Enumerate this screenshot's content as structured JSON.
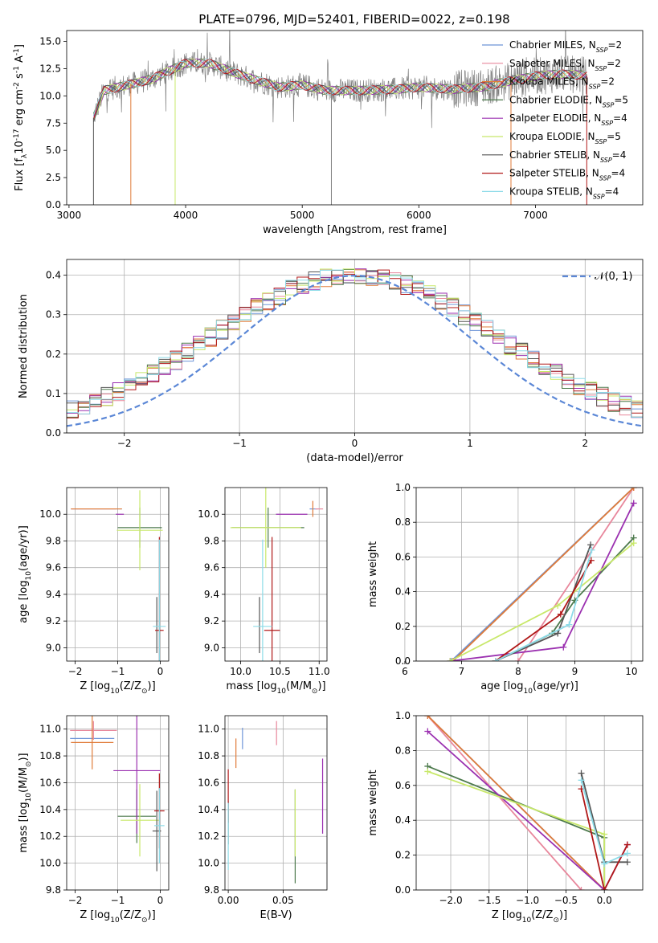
{
  "figure": {
    "title": "PLATE=0796, MJD=52401, FIBERID=0022, z=0.198"
  },
  "models": [
    {
      "name": "Chabrier MILES, N$_{SSP}$=2",
      "label_main": "Chabrier MILES, N",
      "label_sub": "SSP",
      "label_tail": "=2",
      "color": "#6e95d8"
    },
    {
      "name": "Salpeter MILES, N$_{SSP}$=2",
      "label_main": "Salpeter MILES, N",
      "label_sub": "SSP",
      "label_tail": "=2",
      "color": "#e8879c"
    },
    {
      "name": "Kroupa MILES, N$_{SSP}$=2",
      "label_main": "Kroupa MILES, N",
      "label_sub": "SSP",
      "label_tail": "=2",
      "color": "#e07b39"
    },
    {
      "name": "Chabrier ELODIE, N$_{SSP}$=5",
      "label_main": "Chabrier ELODIE, N",
      "label_sub": "SSP",
      "label_tail": "=5",
      "color": "#4d7a4d"
    },
    {
      "name": "Salpeter ELODIE, N$_{SSP}$=4",
      "label_main": "Salpeter ELODIE, N",
      "label_sub": "SSP",
      "label_tail": "=4",
      "color": "#9b30b0"
    },
    {
      "name": "Kroupa ELODIE, N$_{SSP}$=5",
      "label_main": "Kroupa ELODIE, N",
      "label_sub": "SSP",
      "label_tail": "=5",
      "color": "#c8e86a"
    },
    {
      "name": "Chabrier STELIB, N$_{SSP}$=4",
      "label_main": "Chabrier STELIB, N",
      "label_sub": "SSP",
      "label_tail": "=4",
      "color": "#555555"
    },
    {
      "name": "Salpeter STELIB, N$_{SSP}$=4",
      "label_main": "Salpeter STELIB, N",
      "label_sub": "SSP",
      "label_tail": "=4",
      "color": "#b01818"
    },
    {
      "name": "Kroupa STELIB, N$_{SSP}$=4",
      "label_main": "Kroupa STELIB, N",
      "label_sub": "SSP",
      "label_tail": "=4",
      "color": "#8ddbe8"
    }
  ],
  "chart_data": [
    {
      "id": "spectrum",
      "type": "line",
      "xlabel": "wavelength [Angstrom, rest frame]",
      "ylabel": "Flux [f$_\\lambda$10$^{-17}$ erg cm$^{-2}$ s$^{-1}$ A$^{-1}$]",
      "xlim": [
        2980,
        7920
      ],
      "ylim": [
        0,
        16
      ],
      "xticks": [
        "3000",
        "4000",
        "5000",
        "6000",
        "7000"
      ],
      "yticks": [
        "0.0",
        "2.5",
        "5.0",
        "7.5",
        "10.0",
        "12.5",
        "15.0"
      ],
      "data_color": "#808080",
      "data_xrange": [
        3210,
        7440
      ],
      "continuum": {
        "x": [
          3210,
          3300,
          3500,
          3700,
          3900,
          4000,
          4200,
          4500,
          4800,
          5000,
          5200,
          5500,
          5800,
          6000,
          6300,
          6500,
          6600,
          6700,
          6800,
          6900,
          7000,
          7200,
          7440
        ],
        "y": [
          8.0,
          10.5,
          11.0,
          11.5,
          12.5,
          13.0,
          13.0,
          11.8,
          10.8,
          11.0,
          10.5,
          10.5,
          10.6,
          10.8,
          10.6,
          10.8,
          10.9,
          11.2,
          11.4,
          11.6,
          11.8,
          12.0,
          11.9
        ]
      },
      "grid": false,
      "legend": "upper right"
    },
    {
      "id": "residuals",
      "type": "histogram",
      "xlabel": "(data-model)/error",
      "ylabel": "Normed distribution",
      "xlim": [
        -2.5,
        2.5
      ],
      "ylim": [
        0,
        0.44
      ],
      "xticks": [
        "−2",
        "−1",
        "0",
        "1",
        "2"
      ],
      "yticks": [
        "0.0",
        "0.1",
        "0.2",
        "0.3",
        "0.4"
      ],
      "bin_width": 0.1,
      "reference_curve": {
        "name": "$\\mathcal{N}(0,1)$",
        "label": "𝒩(0, 1)",
        "color": "#5b87d6",
        "style": "dashed"
      },
      "grid": true,
      "legend": "upper right"
    },
    {
      "id": "age_vs_Z",
      "type": "errorbar",
      "xlabel": "Z [log$_{10}$(Z/Z$_\\odot$)]",
      "ylabel": "age  [log$_{10}$(age/yr)]",
      "xlim": [
        -2.2,
        0.2
      ],
      "ylim": [
        8.9,
        10.2
      ],
      "xticks": [
        "−2",
        "−1",
        "0"
      ],
      "yticks": [
        "9.0",
        "9.2",
        "9.4",
        "9.6",
        "9.8",
        "10.0"
      ],
      "points": [
        {
          "model": 0,
          "x": -1.5,
          "y": 10.04,
          "xerr": 0.6,
          "yerr": 0.0
        },
        {
          "model": 1,
          "x": -1.57,
          "y": 10.04,
          "xerr": 0.53,
          "yerr": 0.0
        },
        {
          "model": 2,
          "x": -1.5,
          "y": 10.04,
          "xerr": 0.6,
          "yerr": 0.0
        },
        {
          "model": 3,
          "x": -0.48,
          "y": 9.9,
          "xerr": 0.52,
          "yerr": 0.15
        },
        {
          "model": 4,
          "x": -0.95,
          "y": 10.0,
          "xerr": 0.0,
          "yerr": 0.0
        },
        {
          "model": 5,
          "x": -0.48,
          "y": 9.88,
          "xerr": 0.54,
          "yerr": 0.3
        },
        {
          "model": 6,
          "x": -0.08,
          "y": 9.17,
          "xerr": 0.0,
          "yerr": 0.21
        },
        {
          "model": 7,
          "x": -0.02,
          "y": 9.13,
          "xerr": 0.1,
          "yerr": 0.7
        },
        {
          "model": 8,
          "x": -0.02,
          "y": 9.16,
          "xerr": 0.15,
          "yerr": 0.65
        }
      ],
      "grid": true
    },
    {
      "id": "age_vs_mass",
      "type": "errorbar",
      "xlabel": "mass [log$_{10}$(M/M$_\\odot$)]",
      "ylabel": "",
      "xlim": [
        9.8,
        11.1
      ],
      "ylim": [
        8.9,
        10.2
      ],
      "xticks": [
        "10.0",
        "10.5",
        "11.0"
      ],
      "yticks": [
        "9.0",
        "9.2",
        "9.4",
        "9.6",
        "9.8",
        "10.0"
      ],
      "points": [
        {
          "model": 0,
          "x": 10.93,
          "y": 10.04,
          "xerr": 0.0,
          "yerr": 0.0
        },
        {
          "model": 1,
          "x": 11.0,
          "y": 10.04,
          "xerr": 0.05,
          "yerr": 0.0
        },
        {
          "model": 2,
          "x": 10.92,
          "y": 10.04,
          "xerr": 0.0,
          "yerr": 0.06
        },
        {
          "model": 3,
          "x": 10.35,
          "y": 9.9,
          "xerr": 0.46,
          "yerr": 0.15
        },
        {
          "model": 4,
          "x": 10.65,
          "y": 10.0,
          "xerr": 0.2,
          "yerr": 0.0
        },
        {
          "model": 5,
          "x": 10.32,
          "y": 9.9,
          "xerr": 0.45,
          "yerr": 0.3
        },
        {
          "model": 6,
          "x": 10.24,
          "y": 9.17,
          "xerr": 0.0,
          "yerr": 0.21
        },
        {
          "model": 7,
          "x": 10.4,
          "y": 9.13,
          "xerr": 0.1,
          "yerr": 0.7
        },
        {
          "model": 8,
          "x": 10.28,
          "y": 9.16,
          "xerr": 0.12,
          "yerr": 0.65
        }
      ],
      "grid": true
    },
    {
      "id": "massweight_vs_age",
      "type": "line",
      "xlabel": "age  [log$_{10}$(age/yr)]",
      "ylabel": "mass weight",
      "xlim": [
        6.2,
        10.2
      ],
      "ylim": [
        0,
        1
      ],
      "xticks": [
        "6",
        "7",
        "8",
        "9",
        "10"
      ],
      "yticks": [
        "0.0",
        "0.2",
        "0.4",
        "0.6",
        "0.8",
        "1.0"
      ],
      "series": [
        {
          "model": 0,
          "x": [
            6.82,
            10.04
          ],
          "y": [
            0.0,
            1.0
          ]
        },
        {
          "model": 1,
          "x": [
            8.0,
            10.04
          ],
          "y": [
            0.0,
            1.0
          ]
        },
        {
          "model": 2,
          "x": [
            6.85,
            10.04
          ],
          "y": [
            0.0,
            1.0
          ]
        },
        {
          "model": 3,
          "x": [
            7.6,
            8.6,
            9.0,
            10.04
          ],
          "y": [
            0.0,
            0.16,
            0.35,
            0.71
          ]
        },
        {
          "model": 4,
          "x": [
            6.8,
            8.8,
            10.04
          ],
          "y": [
            0.0,
            0.08,
            0.91
          ]
        },
        {
          "model": 5,
          "x": [
            6.8,
            8.7,
            10.04
          ],
          "y": [
            0.0,
            0.32,
            0.68
          ]
        },
        {
          "model": 6,
          "x": [
            7.6,
            8.7,
            9.28
          ],
          "y": [
            0.0,
            0.16,
            0.67
          ]
        },
        {
          "model": 7,
          "x": [
            7.6,
            8.75,
            9.29
          ],
          "y": [
            0.0,
            0.27,
            0.58
          ]
        },
        {
          "model": 8,
          "x": [
            7.6,
            8.9,
            9.3
          ],
          "y": [
            0.0,
            0.21,
            0.64
          ]
        }
      ],
      "grid": true
    },
    {
      "id": "mass_vs_Z",
      "type": "errorbar",
      "xlabel": "Z [log$_{10}$(Z/Z$_\\odot$)]",
      "ylabel": "mass [log$_{10}$(M/M$_\\odot$)]",
      "xlim": [
        -2.2,
        0.2
      ],
      "ylim": [
        9.8,
        11.1
      ],
      "xticks": [
        "−2",
        "−1",
        "0"
      ],
      "yticks": [
        "9.8",
        "10.0",
        "10.2",
        "10.4",
        "10.6",
        "10.8",
        "11.0"
      ],
      "points": [
        {
          "model": 0,
          "x": -1.6,
          "y": 10.93,
          "xerr": 0.52,
          "yerr": 0.0
        },
        {
          "model": 1,
          "x": -1.57,
          "y": 10.99,
          "xerr": 0.55,
          "yerr": 0.07
        },
        {
          "model": 2,
          "x": -1.6,
          "y": 10.9,
          "xerr": 0.5,
          "yerr": 0.2
        },
        {
          "model": 3,
          "x": -0.55,
          "y": 10.35,
          "xerr": 0.45,
          "yerr": 0.2
        },
        {
          "model": 4,
          "x": -0.55,
          "y": 10.69,
          "xerr": 0.55,
          "yerr": 0.47
        },
        {
          "model": 5,
          "x": -0.48,
          "y": 10.32,
          "xerr": 0.45,
          "yerr": 0.27
        },
        {
          "model": 6,
          "x": -0.08,
          "y": 10.24,
          "xerr": 0.1,
          "yerr": 0.3
        },
        {
          "model": 7,
          "x": -0.02,
          "y": 10.39,
          "xerr": 0.12,
          "yerr": 0.28
        },
        {
          "model": 8,
          "x": -0.02,
          "y": 10.28,
          "xerr": 0.12,
          "yerr": 0.28
        }
      ],
      "grid": true
    },
    {
      "id": "mass_vs_ebv",
      "type": "errorbar",
      "xlabel": "E(B-V)",
      "ylabel": "",
      "xlim": [
        -0.003,
        0.09
      ],
      "ylim": [
        9.8,
        11.1
      ],
      "xticks": [
        "0.00",
        "0.05"
      ],
      "yticks": [
        "9.8",
        "10.0",
        "10.2",
        "10.4",
        "10.6",
        "10.8",
        "11.0"
      ],
      "points": [
        {
          "model": 0,
          "x": 0.013,
          "y": 10.93,
          "xerr": 0,
          "yerr": 0.08
        },
        {
          "model": 1,
          "x": 0.044,
          "y": 10.97,
          "xerr": 0,
          "yerr": 0.09
        },
        {
          "model": 2,
          "x": 0.007,
          "y": 10.82,
          "xerr": 0,
          "yerr": 0.11
        },
        {
          "model": 3,
          "x": 0.061,
          "y": 10.2,
          "xerr": 0,
          "yerr": 0.35
        },
        {
          "model": 4,
          "x": 0.086,
          "y": 10.5,
          "xerr": 0,
          "yerr": 0.28
        },
        {
          "model": 5,
          "x": 0.061,
          "y": 10.3,
          "xerr": 0,
          "yerr": 0.25
        },
        {
          "model": 6,
          "x": 0.0,
          "y": 10.3,
          "xerr": 0,
          "yerr": 0.16
        },
        {
          "model": 7,
          "x": 0.0,
          "y": 10.5,
          "xerr": 0,
          "yerr": 0.2
        },
        {
          "model": 8,
          "x": 0.0,
          "y": 10.2,
          "xerr": 0,
          "yerr": 0.25
        }
      ],
      "grid": true
    },
    {
      "id": "massweight_vs_Z",
      "type": "line",
      "xlabel": "Z [log$_{10}$(Z/Z$_\\odot$)]",
      "ylabel": "mass weight",
      "xlim": [
        -2.45,
        0.5
      ],
      "ylim": [
        0,
        1
      ],
      "xticks": [
        "−2.0",
        "−1.5",
        "−1.0",
        "−0.5",
        "0.0"
      ],
      "yticks": [
        "0.0",
        "0.2",
        "0.4",
        "0.6",
        "0.8",
        "1.0"
      ],
      "series": [
        {
          "model": 0,
          "x": [
            -2.3,
            0.0
          ],
          "y": [
            1.0,
            0.0
          ]
        },
        {
          "model": 1,
          "x": [
            -2.3,
            -0.3
          ],
          "y": [
            1.0,
            0.0
          ]
        },
        {
          "model": 2,
          "x": [
            -2.3,
            0.0
          ],
          "y": [
            1.0,
            0.0
          ]
        },
        {
          "model": 3,
          "x": [
            -2.3,
            0.0,
            0.0
          ],
          "y": [
            0.71,
            0.3,
            0.0
          ]
        },
        {
          "model": 4,
          "x": [
            -2.3,
            0.0,
            0.3
          ],
          "y": [
            0.91,
            0.0,
            0.26
          ]
        },
        {
          "model": 5,
          "x": [
            -2.3,
            0.0,
            0.0
          ],
          "y": [
            0.68,
            0.32,
            0.0
          ]
        },
        {
          "model": 6,
          "x": [
            -0.3,
            0.0,
            0.3
          ],
          "y": [
            0.67,
            0.16,
            0.16
          ]
        },
        {
          "model": 7,
          "x": [
            -0.3,
            0.0,
            0.3
          ],
          "y": [
            0.58,
            0.0,
            0.26
          ]
        },
        {
          "model": 8,
          "x": [
            -0.3,
            0.0,
            0.3
          ],
          "y": [
            0.63,
            0.15,
            0.21
          ]
        }
      ],
      "grid": true
    }
  ]
}
